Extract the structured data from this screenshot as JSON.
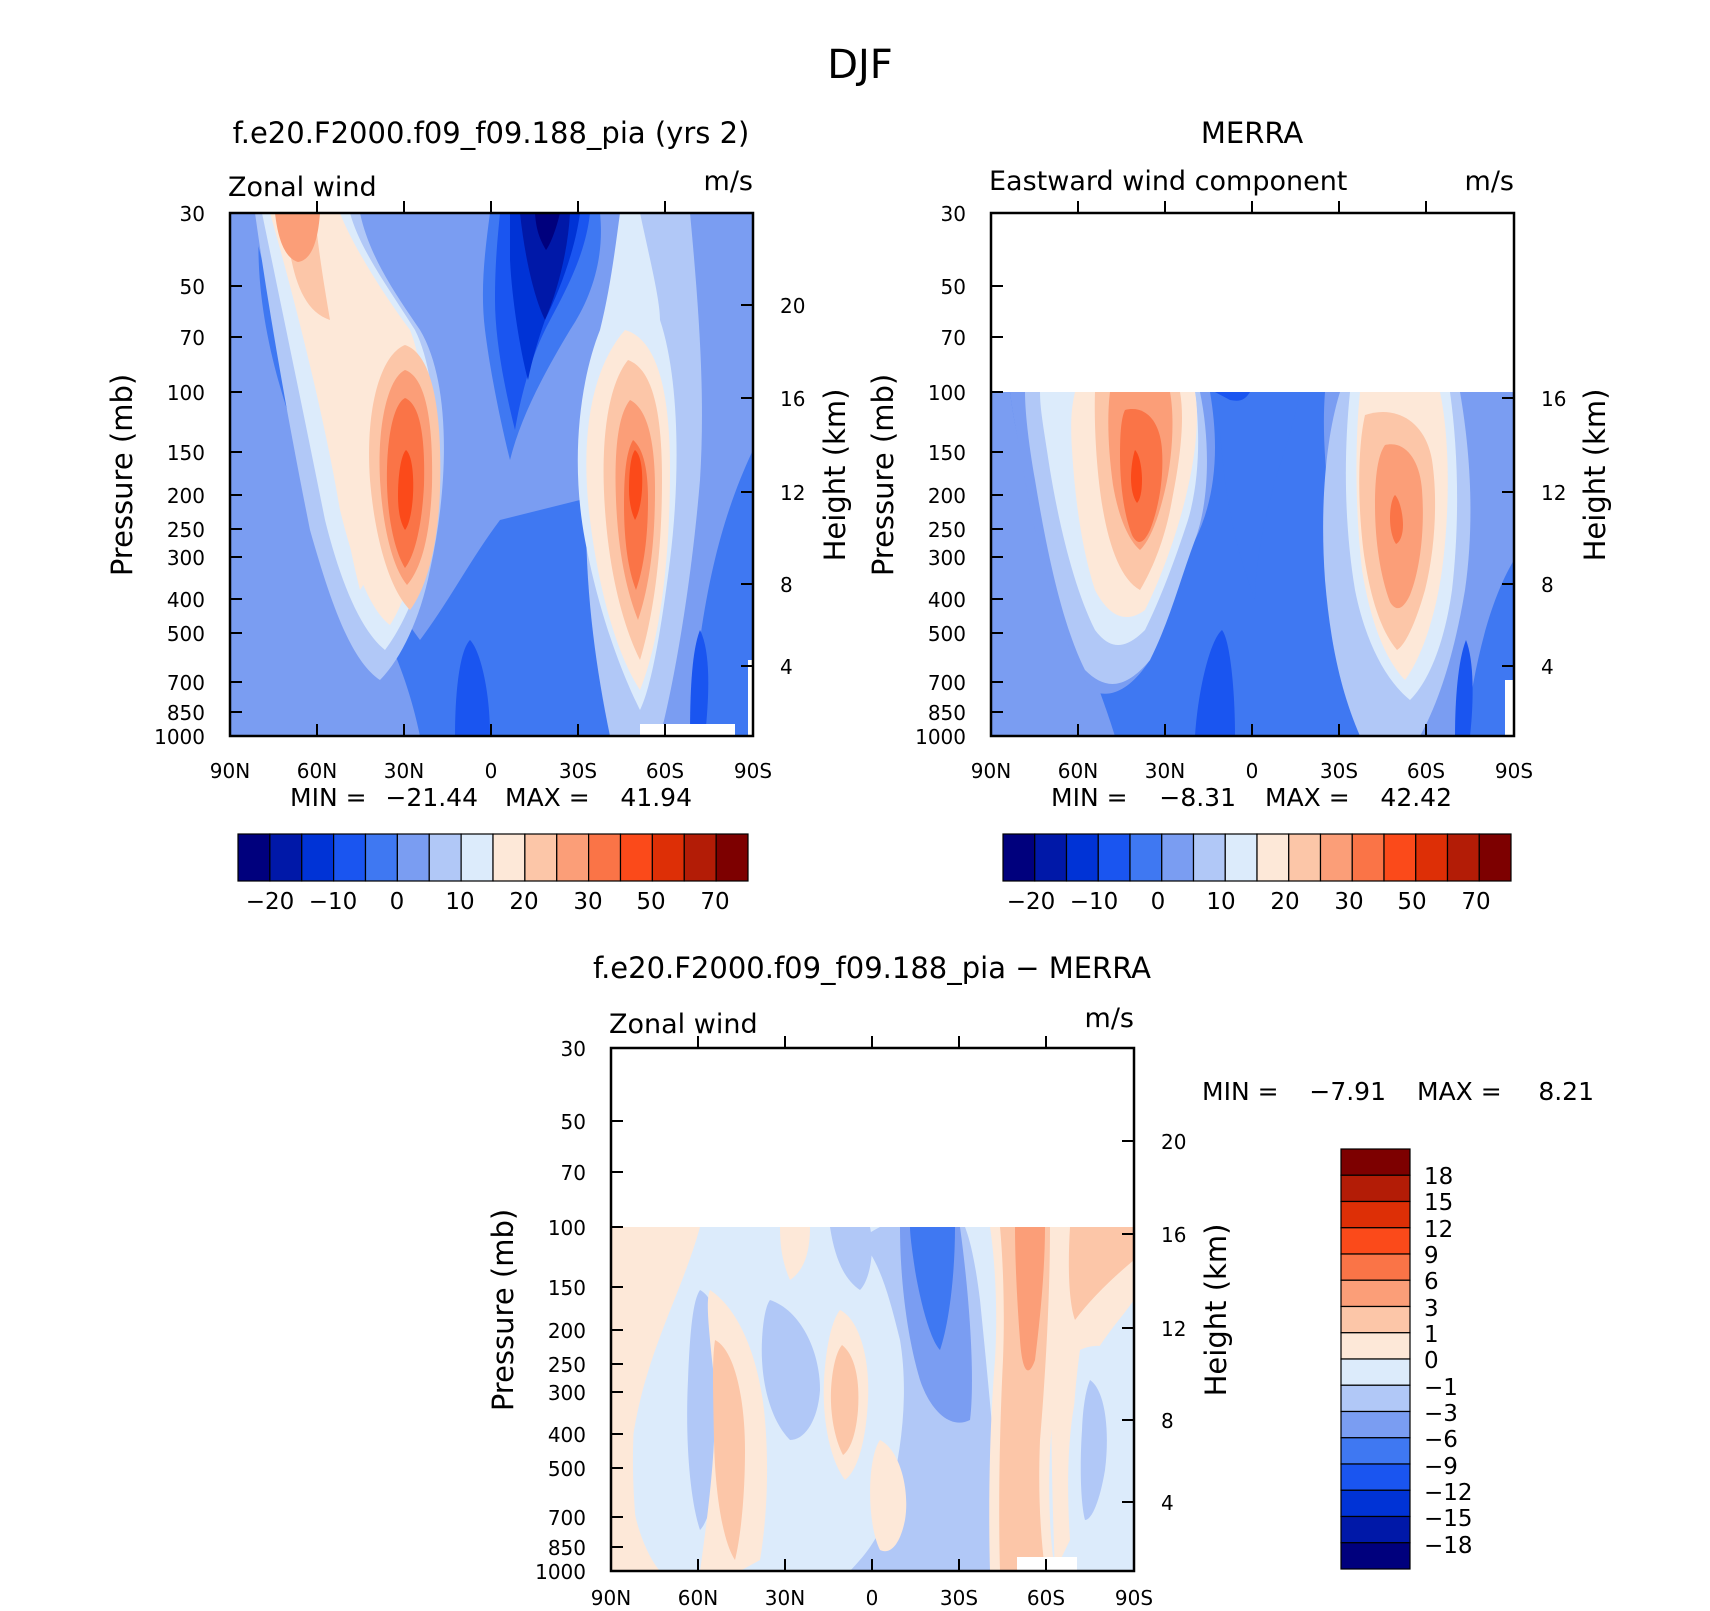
{
  "figure": {
    "title": "DJF"
  },
  "palettes": {
    "full_colors": [
      "#00007d",
      "#0018a8",
      "#0033d6",
      "#1a55f0",
      "#3f78f2",
      "#7a9df2",
      "#b1c8f7",
      "#dcebfb",
      "#fde8d8",
      "#fcc6a8",
      "#fb9e78",
      "#fa7447",
      "#fb4a1a",
      "#dd2f06",
      "#b31c06",
      "#7d0000"
    ],
    "diff_colors": [
      "#00007d",
      "#0018a8",
      "#0033d6",
      "#1a55f0",
      "#3f78f2",
      "#7a9df2",
      "#b1c8f7",
      "#dcebfb",
      "#fde8d8",
      "#fcc6a8",
      "#fb9e78",
      "#fa7447",
      "#fb4a1a",
      "#dd2f06",
      "#b31c06",
      "#7d0000"
    ]
  },
  "chart_data": [
    {
      "type": "heatmap",
      "title": "f.e20.F2000.f09_f09.188_pia (yrs 2)",
      "left_label": "Zonal wind",
      "units": "m/s",
      "ylabel": "Pressure (mb)",
      "ylabel_right": "Height (km)",
      "x_ticks": [
        "90N",
        "60N",
        "30N",
        "0",
        "30S",
        "60S",
        "90S"
      ],
      "y_ticks": [
        "30",
        "50",
        "70",
        "100",
        "150",
        "200",
        "250",
        "300",
        "400",
        "500",
        "700",
        "850",
        "1000"
      ],
      "y_ticks_right": [
        "20",
        "16",
        "12",
        "8",
        "4"
      ],
      "x_range": [
        "90N",
        "90S"
      ],
      "y_range": [
        30,
        1000
      ],
      "stats": {
        "min_label": "MIN =",
        "min": "−21.44",
        "max_label": "MAX =",
        "max": "41.94"
      },
      "colorbar_labels": [
        "−20",
        "−10",
        "0",
        "10",
        "20",
        "30",
        "50",
        "70"
      ],
      "features": [
        {
          "kind": "westerly jet",
          "lat": 30,
          "pressure": 200,
          "peak": 41.94
        },
        {
          "kind": "westerly jet",
          "lat": -50,
          "pressure": 200,
          "peak": 38
        },
        {
          "kind": "easterly max",
          "lat": -15,
          "pressure": 30,
          "peak": -21.44
        }
      ]
    },
    {
      "type": "heatmap",
      "title": "MERRA",
      "left_label": "Eastward wind component",
      "units": "m/s",
      "ylabel": "Pressure (mb)",
      "ylabel_right": "Height (km)",
      "x_ticks": [
        "90N",
        "60N",
        "30N",
        "0",
        "30S",
        "60S",
        "90S"
      ],
      "y_ticks": [
        "30",
        "50",
        "70",
        "100",
        "150",
        "200",
        "250",
        "300",
        "400",
        "500",
        "700",
        "850",
        "1000"
      ],
      "y_ticks_right": [
        "16",
        "12",
        "8",
        "4"
      ],
      "x_range": [
        "90N",
        "90S"
      ],
      "y_range": [
        30,
        1000
      ],
      "data_top_pressure": 100,
      "stats": {
        "min_label": "MIN =",
        "min": "−8.31",
        "max_label": "MAX =",
        "max": "42.42"
      },
      "colorbar_labels": [
        "−20",
        "−10",
        "0",
        "10",
        "20",
        "30",
        "50",
        "70"
      ],
      "features": [
        {
          "kind": "westerly jet",
          "lat": 30,
          "pressure": 200,
          "peak": 42.42
        },
        {
          "kind": "westerly jet",
          "lat": -48,
          "pressure": 250,
          "peak": 33
        },
        {
          "kind": "easterly max",
          "lat": 5,
          "pressure": 150,
          "peak": -8.31
        }
      ]
    },
    {
      "type": "heatmap",
      "title": "f.e20.F2000.f09_f09.188_pia − MERRA",
      "left_label": "Zonal wind",
      "units": "m/s",
      "ylabel": "Pressure (mb)",
      "ylabel_right": "Height (km)",
      "x_ticks": [
        "90N",
        "60N",
        "30N",
        "0",
        "30S",
        "60S",
        "90S"
      ],
      "y_ticks": [
        "30",
        "50",
        "70",
        "100",
        "150",
        "200",
        "250",
        "300",
        "400",
        "500",
        "700",
        "850",
        "1000"
      ],
      "y_ticks_right": [
        "20",
        "16",
        "12",
        "8",
        "4"
      ],
      "x_range": [
        "90N",
        "90S"
      ],
      "y_range": [
        30,
        1000
      ],
      "data_top_pressure": 100,
      "stats": {
        "min_label": "MIN =",
        "min": "−7.91",
        "max_label": "MAX =",
        "max": "8.21"
      },
      "colorbar_labels": [
        "18",
        "15",
        "12",
        "9",
        "6",
        "3",
        "1",
        "0",
        "−1",
        "−3",
        "−6",
        "−9",
        "−12",
        "−15",
        "−18"
      ],
      "features": [
        {
          "kind": "positive bias",
          "lat": -52,
          "pressure": 200,
          "peak": 8.21
        },
        {
          "kind": "negative bias",
          "lat": -18,
          "pressure": 150,
          "peak": -7.91
        }
      ]
    }
  ]
}
